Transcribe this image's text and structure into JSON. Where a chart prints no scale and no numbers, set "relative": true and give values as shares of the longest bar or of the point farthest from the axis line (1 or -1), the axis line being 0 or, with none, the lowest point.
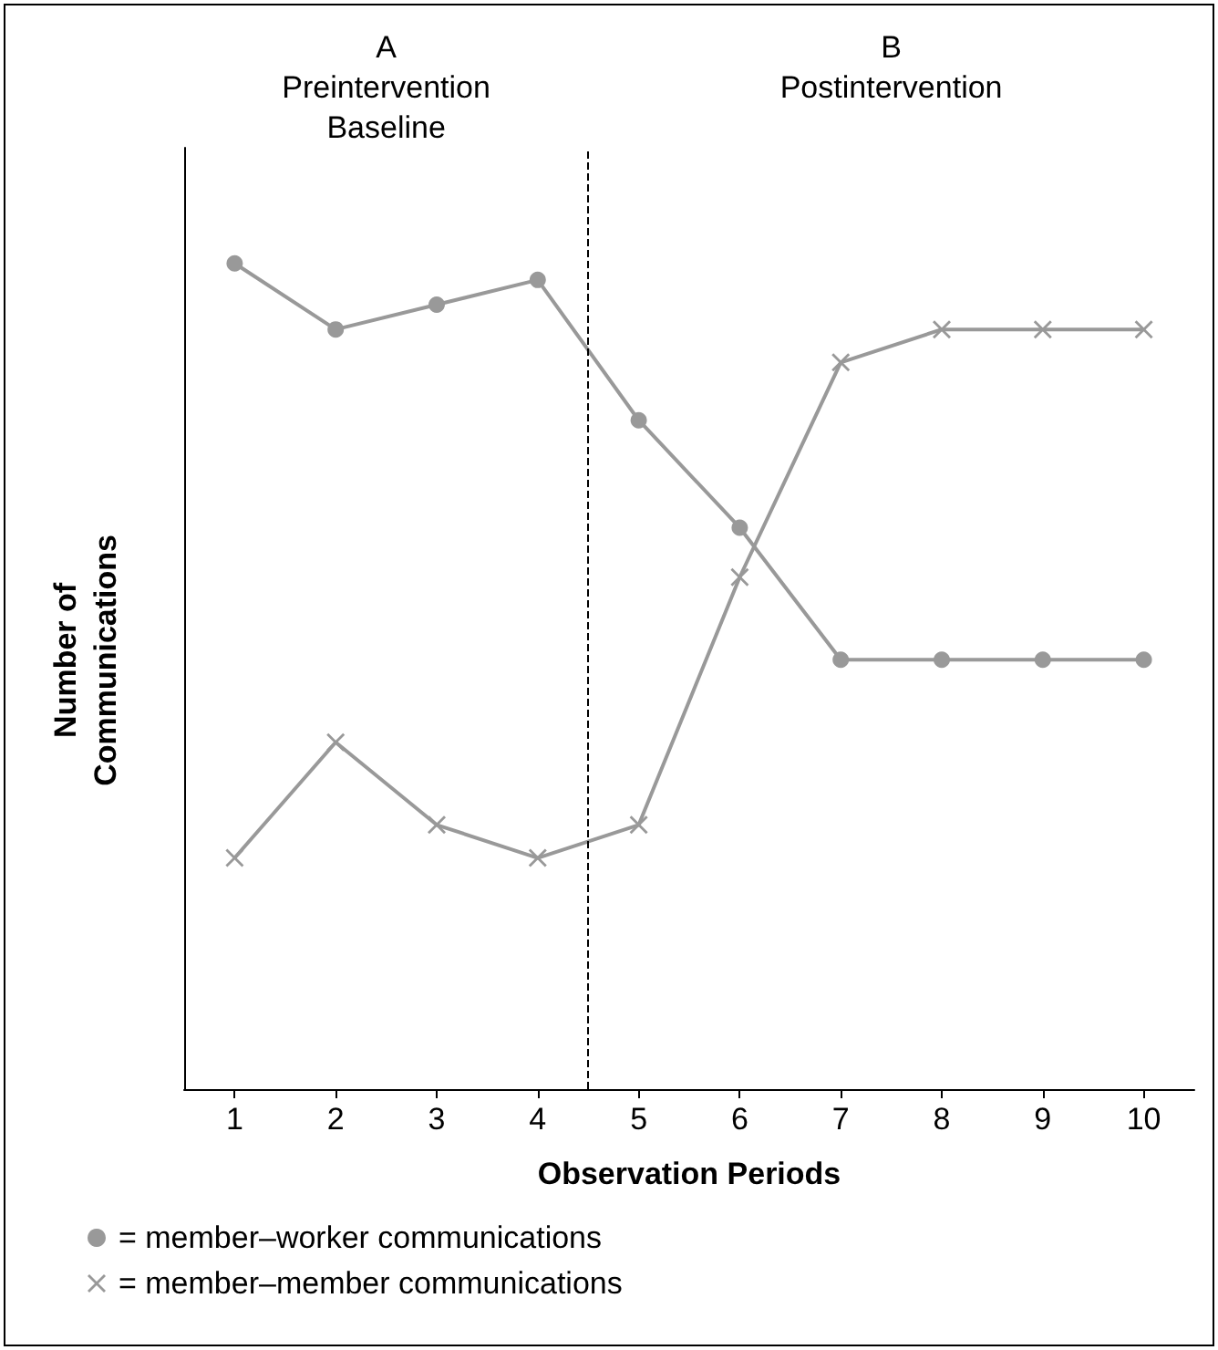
{
  "chart_data": {
    "type": "line",
    "relative": true,
    "x": [
      1,
      2,
      3,
      4,
      5,
      6,
      7,
      8,
      9,
      10
    ],
    "xlim": [
      0.5,
      10.5
    ],
    "xticks": [
      1,
      2,
      3,
      4,
      5,
      6,
      7,
      8,
      9,
      10
    ],
    "xlabel": "Observation Periods",
    "ylabel": "Number of\nCommunications",
    "series": [
      {
        "name": "= member–worker communications",
        "color": "#999999",
        "marker": "circle",
        "values": [
          1,
          0.92,
          0.95,
          0.98,
          0.81,
          0.68,
          0.52,
          0.52,
          0.52,
          0.52
        ]
      },
      {
        "name": "= member–member communications",
        "color": "#999999",
        "marker": "cross",
        "values": [
          0.28,
          0.42,
          0.32,
          0.28,
          0.32,
          0.62,
          0.88,
          0.92,
          0.92,
          0.92
        ]
      }
    ],
    "ref_lines": [
      {
        "axis": "x",
        "value": 4.5,
        "line_style": "dashed",
        "color": "#000000"
      }
    ],
    "annotations": [
      "A\nPreintervention\nBaseline",
      "B\nPostintervention"
    ],
    "legend": "bottom",
    "grid": false
  }
}
